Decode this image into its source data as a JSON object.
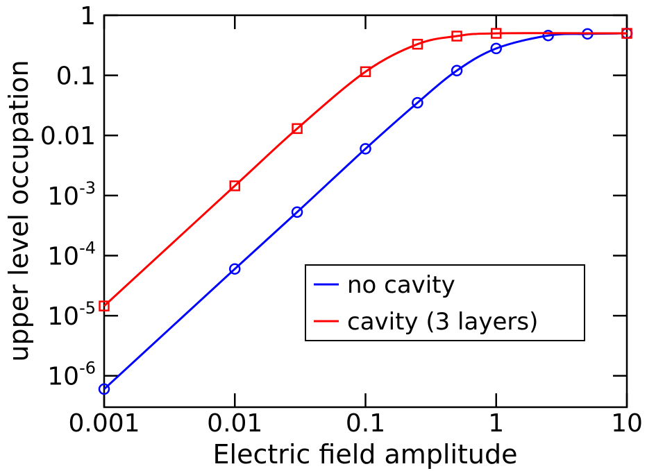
{
  "chart_data": {
    "type": "line",
    "xlabel": "Electric field amplitude",
    "ylabel": "upper level occupation",
    "xscale": "log",
    "yscale": "log",
    "xlim": [
      0.001,
      10
    ],
    "ylim": [
      3e-07,
      1
    ],
    "x_ticks": [
      "0.001",
      "0.01",
      "0.1",
      "1",
      "10"
    ],
    "y_ticks": [
      {
        "base": "10",
        "exp": "-6",
        "value": 1e-06
      },
      {
        "base": "10",
        "exp": "-5",
        "value": 1e-05
      },
      {
        "base": "10",
        "exp": "-4",
        "value": 0.0001
      },
      {
        "base": "10",
        "exp": "-3",
        "value": 0.001
      },
      {
        "base": "0.01",
        "exp": "",
        "value": 0.01
      },
      {
        "base": "0.1",
        "exp": "",
        "value": 0.1
      },
      {
        "base": "1",
        "exp": "",
        "value": 1
      }
    ],
    "grid": false,
    "legend_position": "lower-right",
    "series": [
      {
        "name": "no cavity",
        "color": "#0000ff",
        "marker": "circle",
        "points": [
          [
            0.001,
            6e-07
          ],
          [
            0.01,
            6e-05
          ],
          [
            0.03,
            0.00053
          ],
          [
            0.1,
            0.006
          ],
          [
            0.25,
            0.035
          ],
          [
            0.5,
            0.12
          ],
          [
            1.0,
            0.28
          ],
          [
            2.5,
            0.46
          ],
          [
            5.0,
            0.49
          ],
          [
            10.0,
            0.5
          ]
        ]
      },
      {
        "name": "cavity (3 layers)",
        "color": "#ff0000",
        "marker": "square",
        "points": [
          [
            0.001,
            1.45e-05
          ],
          [
            0.01,
            0.00145
          ],
          [
            0.03,
            0.013
          ],
          [
            0.1,
            0.115
          ],
          [
            0.25,
            0.33
          ],
          [
            0.5,
            0.45
          ],
          [
            1.0,
            0.5
          ],
          [
            10.0,
            0.5
          ]
        ]
      }
    ]
  }
}
